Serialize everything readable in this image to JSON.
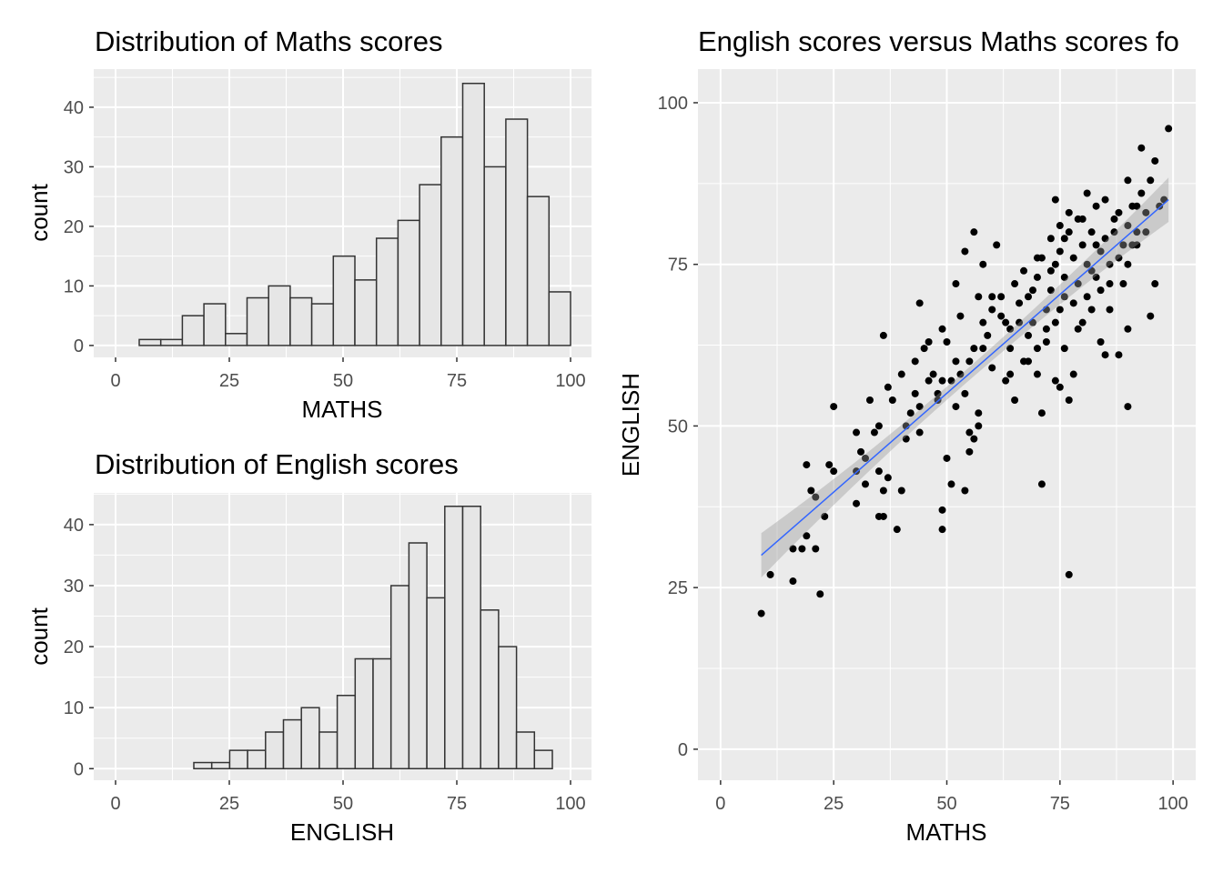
{
  "chart_data": [
    {
      "type": "bar",
      "subtype": "histogram",
      "title": "Distribution of Maths scores",
      "xlabel": "MATHS",
      "ylabel": "count",
      "bin_start": 5.2,
      "binwidth": 4.74,
      "counts": [
        1,
        1,
        5,
        7,
        2,
        8,
        10,
        8,
        7,
        15,
        11,
        18,
        21,
        27,
        35,
        44,
        30,
        38,
        25,
        9
      ],
      "xlim": [
        -4.8,
        104.6
      ],
      "ylim": [
        -2,
        46.4
      ],
      "xticks": [
        "0",
        "25",
        "50",
        "75",
        "100"
      ],
      "yticks": [
        "0",
        "10",
        "20",
        "30",
        "40"
      ],
      "grid": true,
      "fill": "#e6e6e6",
      "outline": "#333333"
    },
    {
      "type": "bar",
      "subtype": "histogram",
      "title": "Distribution of English scores",
      "xlabel": "ENGLISH",
      "ylabel": "count",
      "bin_start": 17.2,
      "binwidth": 3.94,
      "counts": [
        1,
        1,
        3,
        3,
        6,
        8,
        10,
        6,
        12,
        18,
        18,
        30,
        37,
        28,
        43,
        43,
        26,
        20,
        6,
        3
      ],
      "xlim": [
        -4.8,
        104.6
      ],
      "ylim": [
        -1.9,
        45.2
      ],
      "xticks": [
        "0",
        "25",
        "50",
        "75",
        "100"
      ],
      "yticks": [
        "0",
        "10",
        "20",
        "30",
        "40"
      ],
      "grid": true,
      "fill": "#e6e6e6",
      "outline": "#333333"
    },
    {
      "type": "scatter",
      "title": "English scores versus Maths scores fo",
      "xlabel": "MATHS",
      "ylabel": "ENGLISH",
      "xlim": [
        -5,
        105
      ],
      "ylim": [
        -4.8,
        105.2
      ],
      "xticks": [
        "0",
        "25",
        "50",
        "75",
        "100"
      ],
      "yticks": [
        "0",
        "25",
        "50",
        "75",
        "100"
      ],
      "grid": true,
      "point_color": "#000000",
      "trend": {
        "method": "linear",
        "from": [
          9,
          30
        ],
        "to": [
          99,
          85
        ],
        "color": "#3366ff",
        "band_color": "#999999"
      },
      "points": [
        [
          9,
          21
        ],
        [
          11,
          27
        ],
        [
          16,
          26
        ],
        [
          16,
          31
        ],
        [
          18,
          31
        ],
        [
          19,
          33
        ],
        [
          19,
          44
        ],
        [
          20,
          40
        ],
        [
          21,
          39
        ],
        [
          21,
          31
        ],
        [
          22,
          24
        ],
        [
          23,
          36
        ],
        [
          24,
          44
        ],
        [
          25,
          43
        ],
        [
          25,
          53
        ],
        [
          30,
          38
        ],
        [
          30,
          49
        ],
        [
          30,
          43
        ],
        [
          31,
          46
        ],
        [
          32,
          45
        ],
        [
          32,
          41
        ],
        [
          33,
          54
        ],
        [
          34,
          49
        ],
        [
          35,
          43
        ],
        [
          35,
          50
        ],
        [
          35,
          36
        ],
        [
          36,
          36
        ],
        [
          36,
          40
        ],
        [
          36,
          64
        ],
        [
          37,
          42
        ],
        [
          37,
          56
        ],
        [
          38,
          54
        ],
        [
          39,
          34
        ],
        [
          40,
          40
        ],
        [
          40,
          58
        ],
        [
          41,
          48
        ],
        [
          41,
          50
        ],
        [
          42,
          52
        ],
        [
          43,
          60
        ],
        [
          43,
          55
        ],
        [
          44,
          49
        ],
        [
          44,
          69
        ],
        [
          45,
          62
        ],
        [
          46,
          63
        ],
        [
          47,
          58
        ],
        [
          48,
          54
        ],
        [
          49,
          65
        ],
        [
          49,
          34
        ],
        [
          49,
          37
        ],
        [
          50,
          45
        ],
        [
          50,
          63
        ],
        [
          51,
          41
        ],
        [
          52,
          72
        ],
        [
          52,
          53
        ],
        [
          53,
          67
        ],
        [
          54,
          40
        ],
        [
          54,
          55
        ],
        [
          54,
          77
        ],
        [
          55,
          46
        ],
        [
          55,
          49
        ],
        [
          56,
          48
        ],
        [
          56,
          80
        ],
        [
          57,
          50
        ],
        [
          57,
          52
        ],
        [
          58,
          62
        ],
        [
          58,
          75
        ],
        [
          59,
          64
        ],
        [
          60,
          59
        ],
        [
          60,
          70
        ],
        [
          61,
          78
        ],
        [
          62,
          67
        ],
        [
          63,
          57
        ],
        [
          64,
          58
        ],
        [
          64,
          65
        ],
        [
          65,
          54
        ],
        [
          66,
          69
        ],
        [
          67,
          60
        ],
        [
          68,
          64
        ],
        [
          69,
          71
        ],
        [
          70,
          58
        ],
        [
          70,
          76
        ],
        [
          71,
          41
        ],
        [
          71,
          52
        ],
        [
          72,
          65
        ],
        [
          73,
          74
        ],
        [
          74,
          57
        ],
        [
          74,
          85
        ],
        [
          75,
          56
        ],
        [
          75,
          68
        ],
        [
          76,
          79
        ],
        [
          77,
          27
        ],
        [
          77,
          54
        ],
        [
          78,
          58
        ],
        [
          79,
          65
        ],
        [
          80,
          82
        ],
        [
          81,
          70
        ],
        [
          82,
          74
        ],
        [
          83,
          78
        ],
        [
          84,
          63
        ],
        [
          85,
          61
        ],
        [
          85,
          85
        ],
        [
          86,
          68
        ],
        [
          87,
          82
        ],
        [
          88,
          61
        ],
        [
          89,
          72
        ],
        [
          90,
          53
        ],
        [
          90,
          65
        ],
        [
          90,
          88
        ],
        [
          91,
          78
        ],
        [
          92,
          84
        ],
        [
          93,
          93
        ],
        [
          94,
          80
        ],
        [
          95,
          67
        ],
        [
          96,
          72
        ],
        [
          96,
          91
        ],
        [
          97,
          84
        ],
        [
          99,
          96
        ],
        [
          98,
          85
        ],
        [
          62,
          70
        ],
        [
          65,
          72
        ],
        [
          66,
          66
        ],
        [
          68,
          70
        ],
        [
          69,
          66
        ],
        [
          70,
          73
        ],
        [
          72,
          68
        ],
        [
          73,
          71
        ],
        [
          74,
          75
        ],
        [
          75,
          77
        ],
        [
          76,
          73
        ],
        [
          77,
          80
        ],
        [
          78,
          76
        ],
        [
          79,
          72
        ],
        [
          80,
          78
        ],
        [
          81,
          75
        ],
        [
          82,
          80
        ],
        [
          83,
          73
        ],
        [
          84,
          77
        ],
        [
          85,
          79
        ],
        [
          86,
          75
        ],
        [
          87,
          80
        ],
        [
          88,
          83
        ],
        [
          89,
          78
        ],
        [
          90,
          81
        ],
        [
          91,
          84
        ],
        [
          92,
          80
        ],
        [
          93,
          86
        ],
        [
          94,
          83
        ],
        [
          95,
          88
        ],
        [
          76,
          70
        ],
        [
          78,
          69
        ],
        [
          80,
          66
        ],
        [
          82,
          68
        ],
        [
          84,
          71
        ],
        [
          86,
          72
        ],
        [
          88,
          76
        ],
        [
          90,
          75
        ],
        [
          92,
          78
        ],
        [
          67,
          74
        ],
        [
          71,
          76
        ],
        [
          73,
          79
        ],
        [
          75,
          81
        ],
        [
          77,
          83
        ],
        [
          79,
          82
        ],
        [
          81,
          86
        ],
        [
          83,
          84
        ],
        [
          72,
          63
        ],
        [
          74,
          66
        ],
        [
          76,
          62
        ],
        [
          70,
          62
        ],
        [
          68,
          60
        ],
        [
          64,
          62
        ],
        [
          63,
          66
        ],
        [
          60,
          68
        ],
        [
          58,
          66
        ],
        [
          57,
          70
        ],
        [
          55,
          60
        ],
        [
          53,
          58
        ],
        [
          51,
          57
        ],
        [
          48,
          55
        ],
        [
          46,
          57
        ],
        [
          44,
          53
        ],
        [
          49,
          57
        ],
        [
          52,
          60
        ],
        [
          56,
          62
        ]
      ]
    }
  ]
}
